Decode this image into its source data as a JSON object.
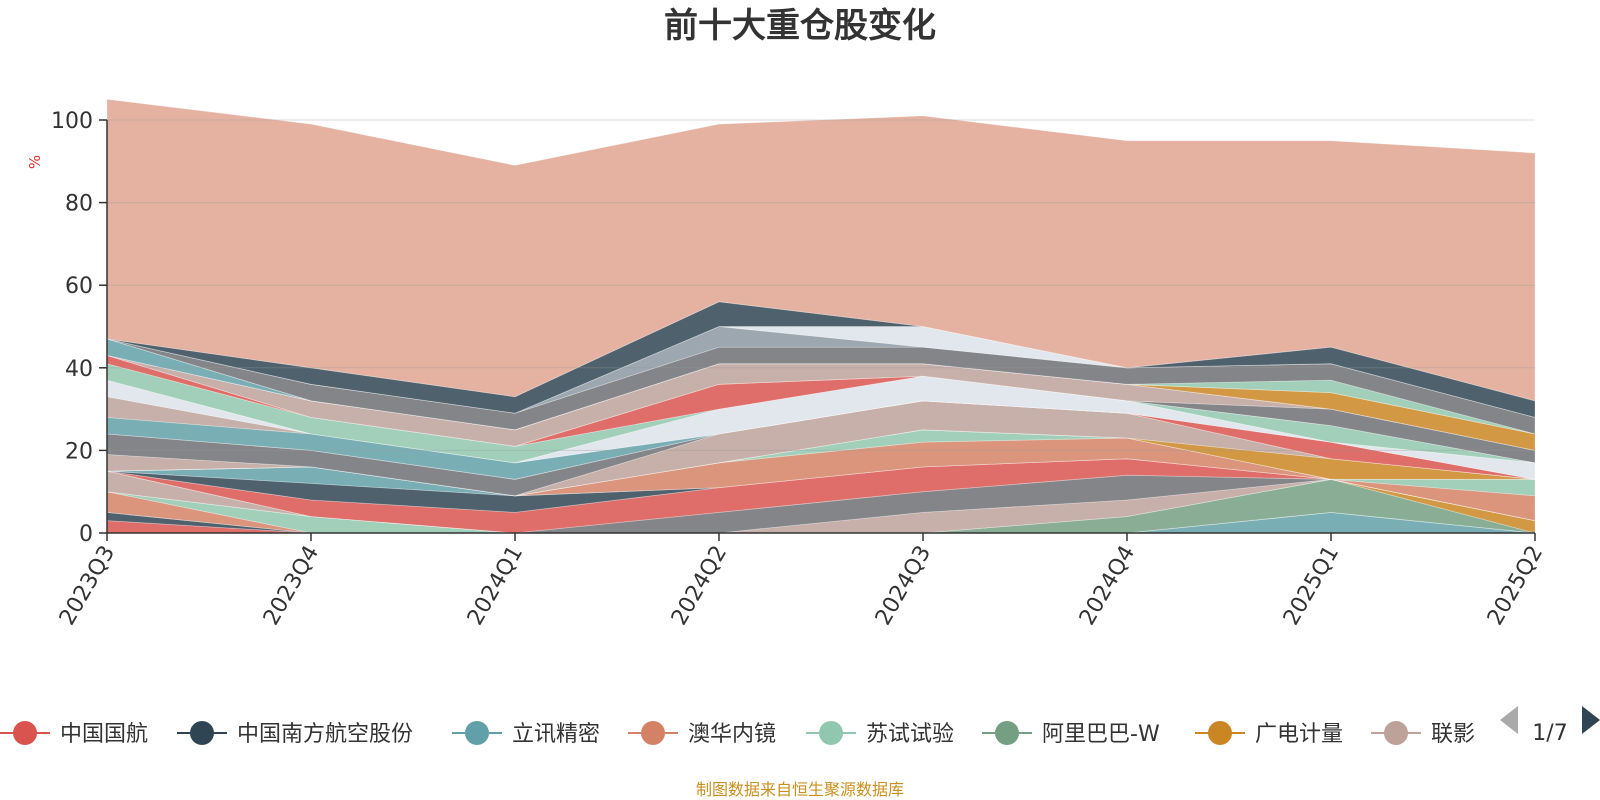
{
  "chart_data": {
    "type": "area",
    "title": "前十大重仓股变化",
    "y_unit": "%",
    "ylim": [
      0,
      100
    ],
    "y_ticks": [
      "0",
      "20",
      "40",
      "60",
      "80",
      "100"
    ],
    "categories": [
      "2023Q3",
      "2023Q4",
      "2024Q1",
      "2024Q2",
      "2024Q3",
      "2024Q4",
      "2025Q1",
      "2025Q2"
    ],
    "grid": true,
    "stacked": true,
    "series": [
      {
        "name": "中国国航",
        "color": "#d9534f",
        "values": [
          3,
          0,
          0,
          0,
          0,
          0,
          0,
          0
        ]
      },
      {
        "name": "中国南方航空股份",
        "color": "#2f4554",
        "values": [
          2,
          0,
          0,
          0,
          0,
          0,
          0,
          0
        ]
      },
      {
        "name": "立讯精密",
        "color": "#61a0a8",
        "values": [
          0,
          0,
          0,
          0,
          0,
          0,
          5,
          0
        ]
      },
      {
        "name": "澳华内镜",
        "color": "#d48265",
        "values": [
          5,
          0,
          0,
          0,
          0,
          0,
          0,
          0
        ]
      },
      {
        "name": "苏试试验",
        "color": "#91c7ae",
        "values": [
          0,
          4,
          0,
          0,
          0,
          0,
          0,
          0
        ]
      },
      {
        "name": "阿里巴巴-W",
        "color": "#749f83",
        "values": [
          0,
          0,
          0,
          0,
          0,
          4,
          8,
          0
        ]
      },
      {
        "name": "广电计量",
        "color": "#ca8622",
        "values": [
          0,
          0,
          0,
          0,
          0,
          0,
          0,
          3
        ]
      },
      {
        "name": "联影",
        "color": "#bda29a",
        "values": [
          5,
          0,
          0,
          0,
          5,
          4,
          0,
          0
        ]
      },
      {
        "name": "",
        "color": "#6e7074",
        "values": [
          0,
          0,
          0,
          5,
          5,
          6,
          0,
          0
        ]
      },
      {
        "name": "",
        "color": "#d9534f",
        "values": [
          0,
          4,
          5,
          6,
          6,
          4,
          0,
          0
        ]
      },
      {
        "name": "",
        "color": "#2f4554",
        "values": [
          0,
          4,
          4,
          0,
          0,
          0,
          0,
          0
        ]
      },
      {
        "name": "",
        "color": "#61a0a8",
        "values": [
          0,
          4,
          0,
          0,
          0,
          0,
          0,
          0
        ]
      },
      {
        "name": "",
        "color": "#d48265",
        "values": [
          0,
          0,
          0,
          6,
          6,
          5,
          0,
          6
        ]
      },
      {
        "name": "",
        "color": "#91c7ae",
        "values": [
          0,
          0,
          0,
          0,
          3,
          0,
          0,
          4
        ]
      },
      {
        "name": "",
        "color": "#749f83",
        "values": [
          0,
          0,
          0,
          0,
          0,
          0,
          0,
          0
        ]
      },
      {
        "name": "",
        "color": "#ca8622",
        "values": [
          0,
          0,
          0,
          0,
          0,
          0,
          5,
          0
        ]
      },
      {
        "name": "",
        "color": "#bda29a",
        "values": [
          4,
          0,
          0,
          7,
          7,
          6,
          0,
          0
        ]
      },
      {
        "name": "",
        "color": "#6e7074",
        "values": [
          5,
          4,
          4,
          0,
          0,
          0,
          0,
          0
        ]
      },
      {
        "name": "",
        "color": "#d9534f",
        "values": [
          0,
          0,
          0,
          0,
          0,
          0,
          4,
          0
        ]
      },
      {
        "name": "",
        "color": "#61a0a8",
        "values": [
          4,
          4,
          4,
          0,
          0,
          0,
          0,
          0
        ]
      },
      {
        "name": "",
        "color": "#bda29a",
        "values": [
          5,
          0,
          0,
          0,
          0,
          0,
          0,
          0
        ]
      },
      {
        "name": "",
        "color": "#dde3ea",
        "values": [
          4,
          0,
          0,
          6,
          6,
          3,
          0,
          4
        ]
      },
      {
        "name": "",
        "color": "#91c7ae",
        "values": [
          4,
          4,
          4,
          0,
          0,
          0,
          4,
          0
        ]
      },
      {
        "name": "",
        "color": "#d9534f",
        "values": [
          2,
          0,
          0,
          6,
          0,
          0,
          0,
          0
        ]
      },
      {
        "name": "",
        "color": "#6e7074",
        "values": [
          0,
          0,
          0,
          0,
          0,
          0,
          4,
          3
        ]
      },
      {
        "name": "",
        "color": "#bda29a",
        "values": [
          0,
          4,
          4,
          5,
          3,
          4,
          0,
          0
        ]
      },
      {
        "name": "",
        "color": "#2f4554",
        "values": [
          0,
          0,
          0,
          0,
          0,
          0,
          0,
          0
        ]
      },
      {
        "name": "",
        "color": "#ca8622",
        "values": [
          0,
          0,
          0,
          0,
          0,
          0,
          4,
          4
        ]
      },
      {
        "name": "",
        "color": "#61a0a8",
        "values": [
          4,
          0,
          0,
          0,
          0,
          0,
          0,
          0
        ]
      },
      {
        "name": "",
        "color": "#91c7ae",
        "values": [
          0,
          0,
          0,
          0,
          0,
          0,
          3,
          0
        ]
      },
      {
        "name": "",
        "color": "#6e7074",
        "values": [
          0,
          4,
          4,
          4,
          4,
          4,
          4,
          4
        ]
      },
      {
        "name": "",
        "color": "#8b98a2",
        "values": [
          0,
          0,
          0,
          5,
          0,
          0,
          0,
          0
        ]
      },
      {
        "name": "",
        "color": "#dde3ea",
        "values": [
          0,
          0,
          0,
          0,
          5,
          0,
          0,
          0
        ]
      },
      {
        "name": "",
        "color": "#2f4554",
        "values": [
          0,
          4,
          4,
          6,
          0,
          0,
          4,
          4
        ]
      },
      {
        "name": "",
        "color": "#e0a590",
        "values": [
          58,
          59,
          56,
          43,
          51,
          55,
          50,
          60
        ]
      }
    ]
  },
  "legend": {
    "items": [
      {
        "label": "中国国航",
        "color": "#d9534f"
      },
      {
        "label": "中国南方航空股份",
        "color": "#2f4554"
      },
      {
        "label": "立讯精密",
        "color": "#61a0a8"
      },
      {
        "label": "澳华内镜",
        "color": "#d48265"
      },
      {
        "label": "苏试试验",
        "color": "#91c7ae"
      },
      {
        "label": "阿里巴巴-W",
        "color": "#749f83"
      },
      {
        "label": "广电计量",
        "color": "#ca8622"
      },
      {
        "label": "联影",
        "color": "#bda29a"
      }
    ],
    "page": "1/7"
  },
  "footer": {
    "source": "制图数据来自恒生聚源数据库"
  }
}
